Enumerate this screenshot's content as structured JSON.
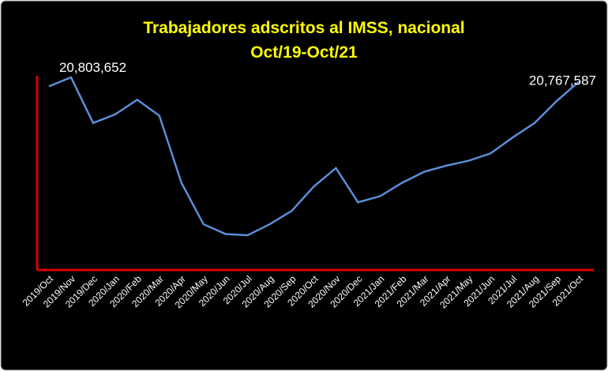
{
  "chart_data": {
    "type": "line",
    "title": "Trabajadores adscritos al IMSS, nacional",
    "subtitle": "Oct/19-Oct/21",
    "categories": [
      "2019/Oct",
      "2019/Nov",
      "2019/Dec",
      "2020/Jan",
      "2020/Feb",
      "2020/Mar",
      "2020/Apr",
      "2020/May",
      "2020/Jun",
      "2020/Jul",
      "2020/Aug",
      "2020/Sep",
      "2020/Oct",
      "2020/Nov",
      "2020/Dec",
      "2021/Jan",
      "2021/Feb",
      "2021/Mar",
      "2021/Apr",
      "2021/May",
      "2021/Jun",
      "2021/Jul",
      "2021/Aug",
      "2021/Sep",
      "2021/Oct"
    ],
    "series": [
      {
        "color": "#5b8ed6",
        "values": [
          20730000,
          20803652,
          20430000,
          20500000,
          20620000,
          20490000,
          19940000,
          19600000,
          19520000,
          19510000,
          19600000,
          19710000,
          19910000,
          20060000,
          19780000,
          19830000,
          19940000,
          20030000,
          20080000,
          20120000,
          20180000,
          20310000,
          20430000,
          20610000,
          20767587
        ],
        "value_labels": [
          null,
          "20,803,652",
          null,
          null,
          null,
          null,
          null,
          null,
          null,
          null,
          null,
          null,
          null,
          null,
          null,
          null,
          null,
          null,
          null,
          null,
          null,
          null,
          null,
          null,
          "20,767,587"
        ]
      }
    ],
    "axis_color": "#e00000",
    "title_color": "#ffff00"
  }
}
